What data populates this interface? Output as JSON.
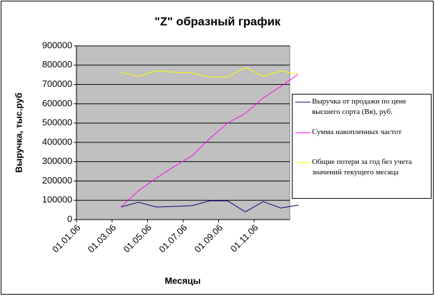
{
  "chart_data": {
    "type": "line",
    "title": "\"Z\" образный график",
    "x_label": "Месяцы",
    "y_label": "Выручка, тыс.руб",
    "categories": [
      "01.01.06",
      null,
      "01.03.06",
      null,
      "01.05.06",
      null,
      "01.07.06",
      null,
      "01.09.06",
      null,
      "01.11.06",
      null
    ],
    "series": [
      {
        "name": "Выручка от продажи по цене высшего сорта (Вв), руб.",
        "color": "#000080",
        "values": [
          null,
          65000,
          90000,
          65000,
          68000,
          72000,
          97000,
          97000,
          40000,
          93000,
          60000,
          75000
        ]
      },
      {
        "name": "Сумма накопленных частот",
        "color": "#ff00ff",
        "values": [
          null,
          65000,
          150000,
          215000,
          275000,
          330000,
          420000,
          500000,
          550000,
          630000,
          690000,
          755000
        ]
      },
      {
        "name": "Общие потери за год без учета значений текущего месяца",
        "color": "#ffff00",
        "values": [
          null,
          763000,
          742000,
          770000,
          763000,
          760000,
          738000,
          738000,
          788000,
          742000,
          770000,
          752000
        ]
      }
    ],
    "ylim": [
      0,
      900000
    ],
    "yticks": [
      0,
      100000,
      200000,
      300000,
      400000,
      500000,
      600000,
      700000,
      800000,
      900000
    ],
    "grid": true
  }
}
